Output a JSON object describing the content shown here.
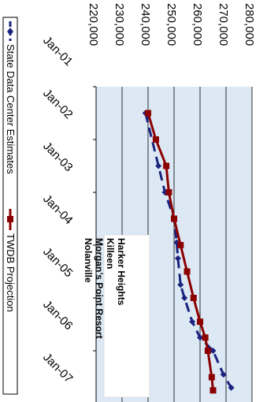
{
  "chart_data": {
    "type": "line",
    "orientation": "rotated-90-clockwise",
    "title": "",
    "xlabel": "",
    "ylabel": "",
    "categories": [
      "Jan-01",
      "Jan-02",
      "Jan-03",
      "Jan-04",
      "Jan-05",
      "Jan-06",
      "Jan-07"
    ],
    "ylim": [
      220000,
      280000
    ],
    "yticks": [
      "220,000",
      "230,000",
      "240,000",
      "250,000",
      "260,000",
      "270,000",
      "280,000"
    ],
    "grid": "horizontal",
    "plot_background": "#dce9f5",
    "series": [
      {
        "name": "State Data Center Estimates",
        "color": "#1a237e",
        "marker": "diamond",
        "style": "dashed",
        "x": [
          1.5,
          2.5,
          3.0,
          3.5,
          3.95,
          4.25,
          4.75,
          5.0,
          5.45,
          5.75,
          6.0,
          6.45,
          6.7
        ],
        "values": [
          239000,
          244000,
          246500,
          250000,
          251000,
          251500,
          252500,
          254000,
          257000,
          260000,
          265000,
          269000,
          272000
        ]
      },
      {
        "name": "TWDB Projection",
        "color": "#8b0000",
        "marker": "square",
        "style": "solid",
        "x": [
          1.5,
          2.0,
          2.5,
          3.0,
          3.5,
          4.0,
          4.5,
          5.0,
          5.45,
          5.75,
          6.0,
          6.5,
          6.75
        ],
        "values": [
          240000,
          243000,
          247000,
          248000,
          250000,
          252500,
          255000,
          257500,
          260000,
          262000,
          263000,
          264500,
          265000
        ]
      }
    ],
    "annotation": [
      "Harker Heights",
      "Killeen",
      "Morgan’s Point Resort",
      "Nolanville"
    ],
    "legend_position": "bottom"
  }
}
